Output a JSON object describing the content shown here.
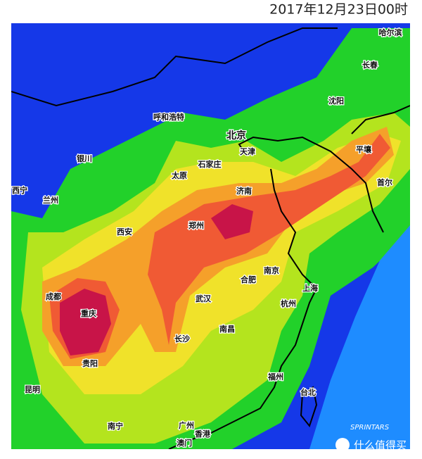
{
  "title": "2017年12月23日00时",
  "cities": [
    "哈尔滨",
    "长春",
    "沈阳",
    "呼和浩特",
    "北京",
    "天津",
    "平壤",
    "银川",
    "石家庄",
    "太原",
    "首尔",
    "西宁",
    "兰州",
    "济南",
    "郑州",
    "西安",
    "合肥",
    "南京",
    "上海",
    "成都",
    "武汉",
    "杭州",
    "重庆",
    "南昌",
    "长沙",
    "贵阳",
    "福州",
    "昆明",
    "台北",
    "南宁",
    "广州",
    "香港",
    "澳门"
  ],
  "watermark": {
    "source": "SPRINTARS",
    "site": "什么值得买"
  }
}
